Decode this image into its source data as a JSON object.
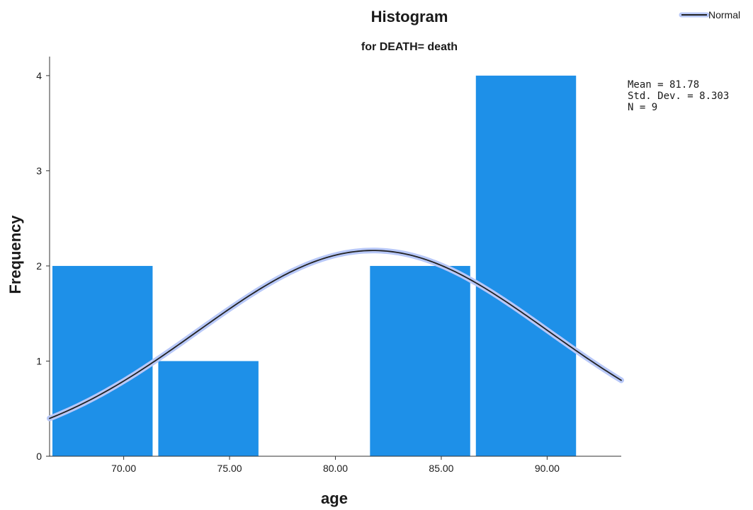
{
  "chart_data": {
    "type": "bar",
    "title": "Histogram",
    "subtitle": "for DEATH= death",
    "xlabel": "age",
    "ylabel": "Frequency",
    "bins": [
      {
        "start": 66.5,
        "end": 71.5,
        "value": 2
      },
      {
        "start": 71.5,
        "end": 76.5,
        "value": 1
      },
      {
        "start": 76.5,
        "end": 81.5,
        "value": 0
      },
      {
        "start": 81.5,
        "end": 86.5,
        "value": 2
      },
      {
        "start": 86.5,
        "end": 91.5,
        "value": 4
      }
    ],
    "xlim": [
      66.5,
      93.5
    ],
    "ylim": [
      0,
      4.2
    ],
    "xticks": [
      70,
      75,
      80,
      85,
      90
    ],
    "xtick_labels": [
      "70.00",
      "75.00",
      "80.00",
      "85.00",
      "90.00"
    ],
    "yticks": [
      0,
      1,
      2,
      3,
      4
    ],
    "ytick_labels": [
      "0",
      "1",
      "2",
      "3",
      "4"
    ],
    "normal_curve": {
      "mean": 81.78,
      "std_dev": 8.303,
      "n": 9,
      "bin_width": 5
    },
    "stats": [
      "Mean = 81.78",
      "Std. Dev. = 8.303",
      "N = 9"
    ],
    "legend": {
      "label": "Normal",
      "placement": "top-right"
    },
    "grid": false,
    "colors": {
      "bar": "#1e90e8",
      "curve": "#222222",
      "curve_halo": "#b8c8f8",
      "axis": "#333333"
    }
  }
}
